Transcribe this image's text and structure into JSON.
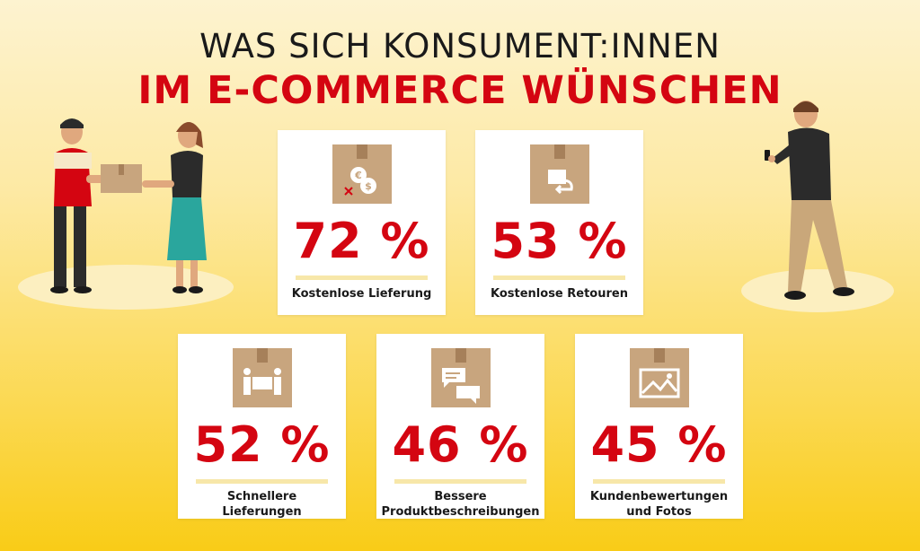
{
  "title": {
    "line1": "WAS SICH KONSUMENT:INNEN",
    "line2": "IM E-COMMERCE WÜNSCHEN"
  },
  "cards": [
    {
      "percent": "72 %",
      "label": "Kostenlose Lieferung",
      "icon": "money-box-icon"
    },
    {
      "percent": "53 %",
      "label": "Kostenlose Retouren",
      "icon": "return-box-icon"
    },
    {
      "percent": "52 %",
      "label_line1": "Schnellere",
      "label_line2": "Lieferungen",
      "icon": "carry-box-icon"
    },
    {
      "percent": "46 %",
      "label_line1": "Bessere",
      "label_line2": "Produktbeschreibungen",
      "icon": "chat-box-icon"
    },
    {
      "percent": "45 %",
      "label_line1": "Kundenbewertungen",
      "label_line2": "und Fotos",
      "icon": "photo-box-icon"
    }
  ],
  "colors": {
    "accent_red": "#d40511",
    "background_yellow": "#fbd84f",
    "box_brown": "#c8a57e",
    "text_dark": "#1a1a1a"
  }
}
